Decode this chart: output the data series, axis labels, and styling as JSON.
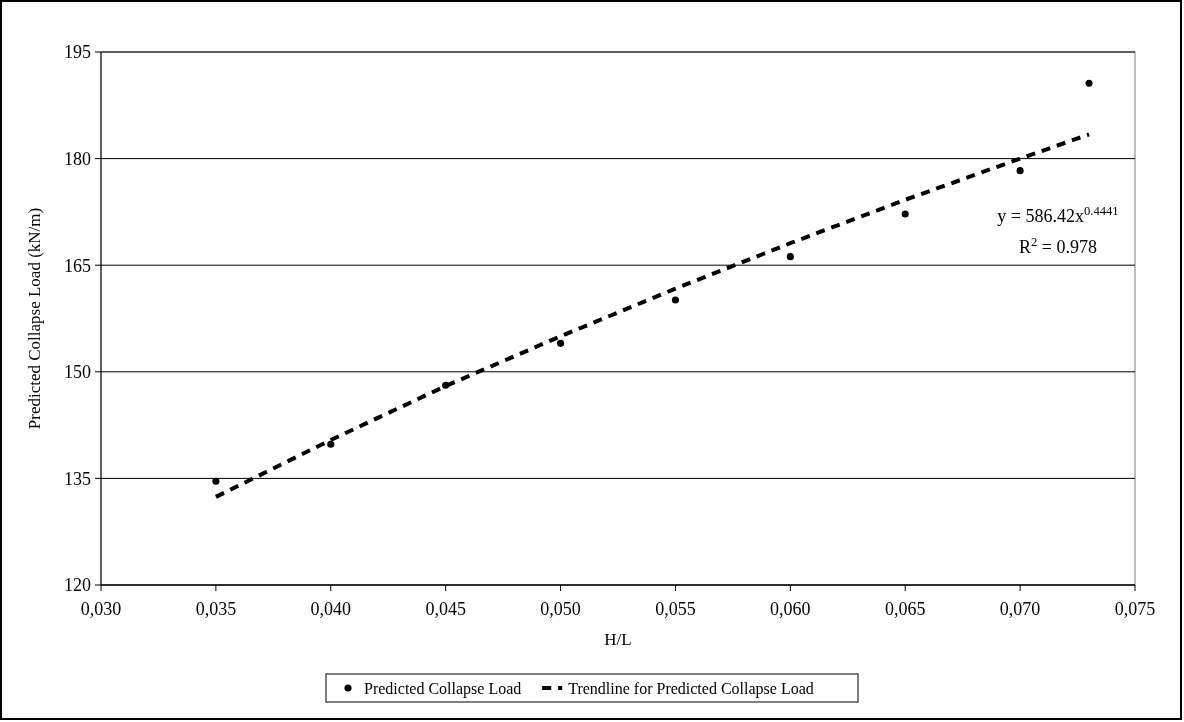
{
  "chart_data": {
    "type": "scatter",
    "xlabel": "H/L",
    "ylabel": "Predicted Collapse Load (kN/m)",
    "xlim": [
      0.03,
      0.075
    ],
    "xticks": [
      {
        "value": 0.03,
        "label": "0,030"
      },
      {
        "value": 0.035,
        "label": "0,035"
      },
      {
        "value": 0.04,
        "label": "0,040"
      },
      {
        "value": 0.045,
        "label": "0,045"
      },
      {
        "value": 0.05,
        "label": "0,050"
      },
      {
        "value": 0.055,
        "label": "0,055"
      },
      {
        "value": 0.06,
        "label": "0,060"
      },
      {
        "value": 0.065,
        "label": "0,065"
      },
      {
        "value": 0.07,
        "label": "0,070"
      },
      {
        "value": 0.075,
        "label": "0,075"
      }
    ],
    "ylim": [
      120,
      195
    ],
    "yticks": [
      120,
      135,
      150,
      165,
      180,
      195
    ],
    "grid": "y",
    "legend": "bottom",
    "series": [
      {
        "name": "Predicted Collapse Load",
        "marker": "circle",
        "color": "#000000",
        "x": [
          0.035,
          0.04,
          0.045,
          0.05,
          0.055,
          0.06,
          0.065,
          0.07,
          0.073
        ],
        "values": [
          134.6,
          139.8,
          148.1,
          154.0,
          160.1,
          166.2,
          172.2,
          178.3,
          190.6
        ]
      },
      {
        "name": "Trendline for Predicted Collapse Load",
        "type": "line",
        "color": "#000000",
        "line_style": "dashed",
        "x": [
          0.035,
          0.04,
          0.045,
          0.05,
          0.055,
          0.06,
          0.065,
          0.07,
          0.073
        ],
        "values": [
          132.4,
          140.4,
          148.0,
          155.0,
          161.7,
          168.1,
          174.2,
          180.0,
          183.4
        ]
      }
    ],
    "annotations": [
      "y = 586.42x$^{0.4441}$",
      "R$^{2}$ = 0.978"
    ]
  }
}
